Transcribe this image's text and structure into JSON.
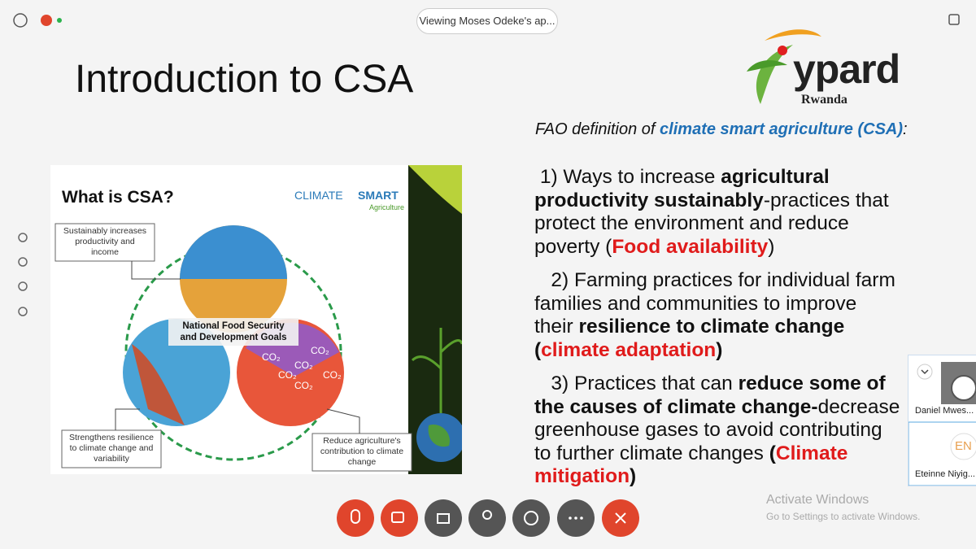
{
  "window": {
    "banner": "Viewing Moses Odeke's ap..."
  },
  "slide": {
    "title": "Introduction to CSA",
    "logo": {
      "name": "ypard",
      "subtitle": "Rwanda"
    },
    "definition": [
      {
        "text": "FAO definition of ",
        "style": "italic"
      },
      {
        "text": "climate smart agriculture (CSA)",
        "style": "italic-blue"
      },
      {
        "text": ":",
        "style": "italic"
      }
    ],
    "image": {
      "title": "What is CSA?",
      "brand": "CLIMATE",
      "brand_bold": "SMART",
      "brand_sub": "Agriculture",
      "center": [
        "National Food Security",
        "and Development Goals"
      ],
      "gas": "CO₂",
      "callouts": [
        [
          "Sustainably increases",
          "productivity and",
          "income"
        ],
        [
          "Strengthens resilience",
          "to climate change and",
          "variability"
        ],
        [
          "Reduce agriculture's",
          "contribution to climate",
          "change"
        ]
      ]
    },
    "points": [
      [
        {
          "text": " 1) Ways to increase ",
          "style": "normal"
        },
        {
          "text": "agricultural productivity sustainably",
          "style": "bold"
        },
        {
          "text": "-practices that protect the environment and reduce poverty (",
          "style": "normal"
        },
        {
          "text": "Food availability",
          "style": "red"
        },
        {
          "text": ")",
          "style": "normal"
        }
      ],
      [
        {
          "text": "   2) Farming practices for individual farm families and communities to improve their ",
          "style": "normal"
        },
        {
          "text": "resilience to climate change (",
          "style": "bold"
        },
        {
          "text": "climate adaptation",
          "style": "red"
        },
        {
          "text": ")",
          "style": "bold"
        }
      ],
      [
        {
          "text": "   3) Practices that can ",
          "style": "normal"
        },
        {
          "text": "reduce some of the causes of climate change-",
          "style": "bold"
        },
        {
          "text": "decrease greenhouse gases to avoid contributing to further climate changes ",
          "style": "normal"
        },
        {
          "text": "(",
          "style": "bold"
        },
        {
          "text": "Climate mitigation",
          "style": "red"
        },
        {
          "text": ")",
          "style": "bold"
        }
      ]
    ]
  },
  "participants": [
    {
      "name": "Daniel Mwes..."
    },
    {
      "initials": "EN",
      "name": "Eteinne Niyig..."
    }
  ],
  "watermark": {
    "title": "Activate Windows",
    "text": "Go to Settings to activate Windows."
  }
}
